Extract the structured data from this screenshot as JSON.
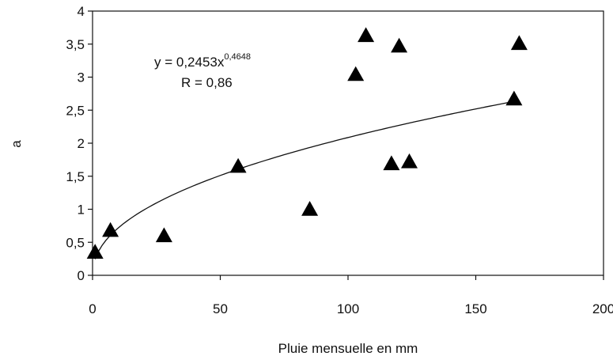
{
  "chart_data": {
    "type": "scatter",
    "xlabel": "Pluie mensuelle en mm",
    "ylabel": "a",
    "xlim": [
      0,
      200
    ],
    "ylim": [
      0,
      4
    ],
    "x_ticks": [
      "0",
      "50",
      "100",
      "150",
      "200"
    ],
    "y_ticks": [
      "0",
      "0,5",
      "1",
      "1,5",
      "2",
      "2,5",
      "3",
      "3,5",
      "4"
    ],
    "grid": false,
    "marker": "filled-triangle",
    "series": [
      {
        "points": [
          {
            "x": 1,
            "y": 0.35
          },
          {
            "x": 7,
            "y": 0.68
          },
          {
            "x": 28,
            "y": 0.6
          },
          {
            "x": 57,
            "y": 1.65
          },
          {
            "x": 85,
            "y": 1.0
          },
          {
            "x": 103,
            "y": 3.04
          },
          {
            "x": 107,
            "y": 3.63
          },
          {
            "x": 117,
            "y": 1.69
          },
          {
            "x": 120,
            "y": 3.47
          },
          {
            "x": 124,
            "y": 1.72
          },
          {
            "x": 165,
            "y": 2.67
          },
          {
            "x": 167,
            "y": 3.51
          }
        ]
      }
    ],
    "trendline": {
      "type": "power",
      "coefficient": 0.2453,
      "exponent": 0.4648,
      "x_range": [
        1,
        165
      ]
    },
    "annotation": {
      "equation_prefix": "y = 0,2453x",
      "equation_exponent": "0,4648",
      "r_text": "R = 0,86"
    }
  }
}
